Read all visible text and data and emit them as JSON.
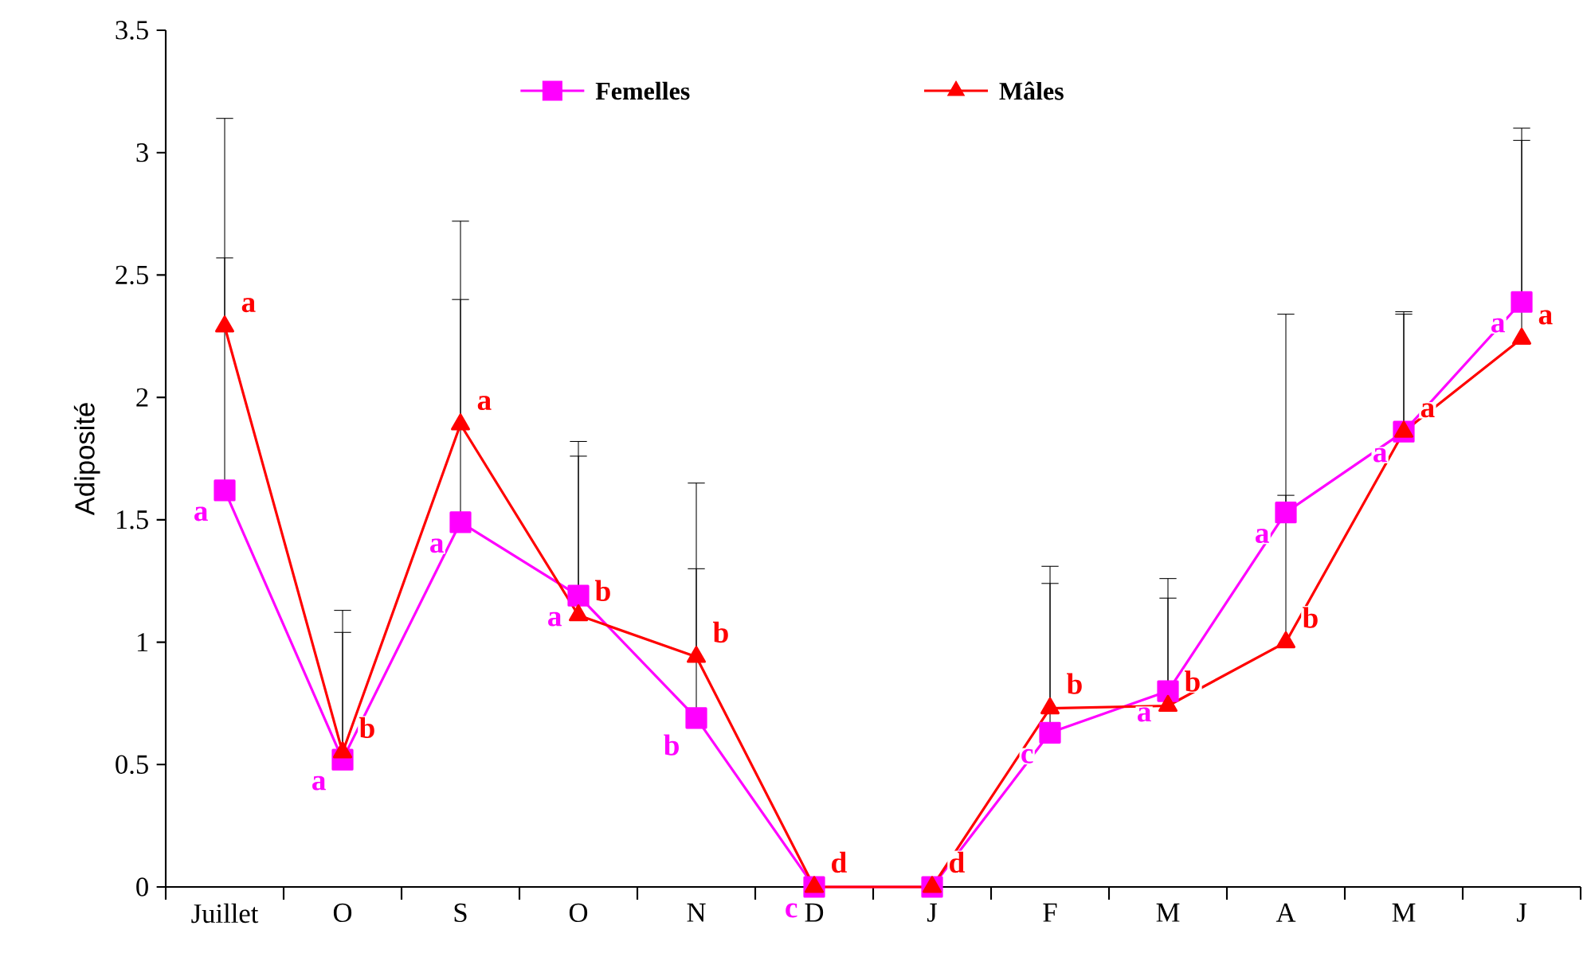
{
  "chart_data": {
    "type": "line",
    "ylabel": "Adiposité",
    "categories": [
      "Juillet",
      "O",
      "S",
      "O",
      "N",
      "D",
      "J",
      "F",
      "M",
      "A",
      "M",
      "J"
    ],
    "series": [
      {
        "name": "Femelles",
        "color": "#ff00ff",
        "marker": "square",
        "values": [
          1.62,
          0.52,
          1.49,
          1.19,
          0.69,
          0,
          0,
          0.63,
          0.8,
          1.53,
          1.86,
          2.39
        ],
        "errors": [
          [
            1.62,
            3.14
          ],
          [
            0.52,
            1.04
          ],
          [
            1.49,
            2.72
          ],
          [
            1.19,
            1.82
          ],
          [
            0.69,
            1.3
          ],
          null,
          null,
          [
            0.63,
            1.24
          ],
          [
            0.8,
            1.26
          ],
          [
            1.53,
            2.34
          ],
          [
            1.86,
            2.35
          ],
          [
            2.39,
            3.1
          ]
        ],
        "value_labels": [
          "a",
          "a",
          "a",
          "a",
          "b",
          "c",
          null,
          "c",
          "a",
          "a",
          "a",
          "a"
        ]
      },
      {
        "name": "Mâles",
        "color": "#ff0000",
        "marker": "triangle",
        "values": [
          2.29,
          0.55,
          1.89,
          1.11,
          0.94,
          0,
          0,
          0.73,
          0.74,
          1.0,
          1.86,
          2.24
        ],
        "errors": [
          [
            2.29,
            2.57
          ],
          [
            0.55,
            1.13
          ],
          [
            1.89,
            2.4
          ],
          [
            1.11,
            1.76
          ],
          [
            0.94,
            1.65
          ],
          null,
          null,
          [
            0.73,
            1.31
          ],
          [
            0.74,
            1.18
          ],
          [
            1.0,
            1.6
          ],
          [
            1.86,
            2.34
          ],
          [
            2.24,
            3.05
          ]
        ],
        "value_labels": [
          "a",
          "b",
          "a",
          "b",
          "b",
          "d",
          "d",
          "b",
          "b",
          "b",
          "a",
          "a"
        ]
      }
    ],
    "ylim": [
      0,
      3.5
    ],
    "yticks": [
      0,
      0.5,
      1,
      1.5,
      2,
      2.5,
      3,
      3.5
    ],
    "legend": "top",
    "grid": false
  }
}
